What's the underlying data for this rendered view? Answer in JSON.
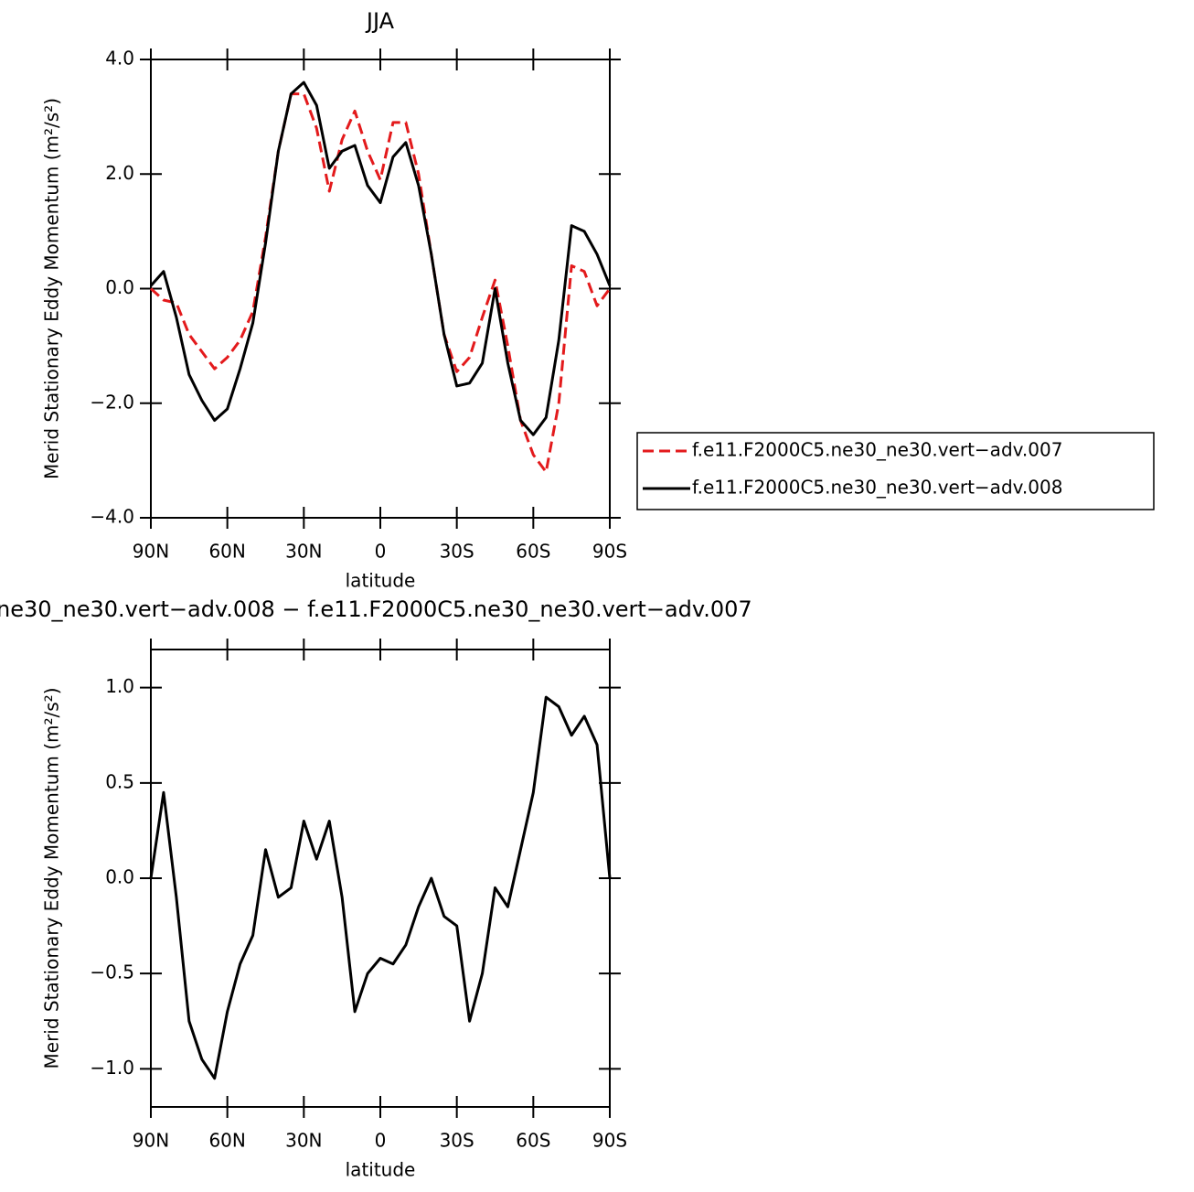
{
  "chart_data": [
    {
      "type": "line",
      "title": "JJA",
      "xlabel": "latitude",
      "ylabel": "Merid Stationary Eddy Momentum (m²/s²)",
      "x": [
        90,
        85,
        80,
        75,
        70,
        65,
        60,
        55,
        50,
        45,
        40,
        35,
        30,
        25,
        20,
        15,
        10,
        5,
        0,
        -5,
        -10,
        -15,
        -20,
        -25,
        -30,
        -35,
        -40,
        -45,
        -50,
        -55,
        -60,
        -65,
        -70,
        -75,
        -80,
        -85,
        -90
      ],
      "xlim": [
        90,
        -90
      ],
      "xticks": [
        {
          "value": 90,
          "label": "90N"
        },
        {
          "value": 60,
          "label": "60N"
        },
        {
          "value": 30,
          "label": "30N"
        },
        0,
        {
          "value": -30,
          "label": "30S"
        },
        {
          "value": -60,
          "label": "60S"
        },
        {
          "value": -90,
          "label": "90S"
        }
      ],
      "ylim": [
        -4,
        4
      ],
      "yticks": [
        {
          "value": -4,
          "label": "−4.0"
        },
        {
          "value": -2,
          "label": "−2.0"
        },
        {
          "value": 0,
          "label": "0.0"
        },
        {
          "value": 2,
          "label": "2.0"
        },
        {
          "value": 4,
          "label": "4.0"
        }
      ],
      "legend": "right",
      "series": [
        {
          "name": "f.e11.F2000C5.ne30_ne30.vert−adv.007",
          "color": "#e31a1c",
          "style": "dashed",
          "values": [
            0.0,
            -0.2,
            -0.25,
            -0.8,
            -1.1,
            -1.4,
            -1.2,
            -0.9,
            -0.4,
            0.9,
            2.4,
            3.4,
            3.4,
            2.8,
            1.7,
            2.6,
            3.1,
            2.4,
            1.9,
            2.9,
            2.9,
            2.0,
            0.6,
            -0.8,
            -1.45,
            -1.2,
            -0.5,
            0.15,
            -1.0,
            -2.3,
            -2.9,
            -3.2,
            -2.0,
            0.4,
            0.3,
            -0.3,
            0.0
          ]
        },
        {
          "name": "f.e11.F2000C5.ne30_ne30.vert−adv.008",
          "color": "#000000",
          "style": "solid",
          "values": [
            0.05,
            0.3,
            -0.5,
            -1.5,
            -1.95,
            -2.3,
            -2.1,
            -1.4,
            -0.6,
            0.8,
            2.4,
            3.4,
            3.6,
            3.2,
            2.1,
            2.4,
            2.5,
            1.8,
            1.5,
            2.3,
            2.55,
            1.8,
            0.6,
            -0.8,
            -1.7,
            -1.65,
            -1.3,
            0.0,
            -1.3,
            -2.3,
            -2.55,
            -2.25,
            -0.9,
            1.1,
            1.0,
            0.6,
            0.05
          ]
        }
      ]
    },
    {
      "type": "line",
      "title": "ne30_ne30.vert−adv.008 − f.e11.F2000C5.ne30_ne30.vert−adv.007",
      "xlabel": "latitude",
      "ylabel": "Merid Stationary Eddy Momentum (m²/s²)",
      "x": [
        90,
        85,
        80,
        75,
        70,
        65,
        60,
        55,
        50,
        45,
        40,
        35,
        30,
        25,
        20,
        15,
        10,
        5,
        0,
        -5,
        -10,
        -15,
        -20,
        -25,
        -30,
        -35,
        -40,
        -45,
        -50,
        -55,
        -60,
        -65,
        -70,
        -75,
        -80,
        -85,
        -90
      ],
      "xlim": [
        90,
        -90
      ],
      "xticks": [
        {
          "value": 90,
          "label": "90N"
        },
        {
          "value": 60,
          "label": "60N"
        },
        {
          "value": 30,
          "label": "30N"
        },
        0,
        {
          "value": -30,
          "label": "30S"
        },
        {
          "value": -60,
          "label": "60S"
        },
        {
          "value": -90,
          "label": "90S"
        }
      ],
      "ylim": [
        -1.2,
        1.2
      ],
      "yticks": [
        {
          "value": -1,
          "label": "−1.0"
        },
        {
          "value": -0.5,
          "label": "−0.5"
        },
        {
          "value": 0,
          "label": "0.0"
        },
        {
          "value": 0.5,
          "label": "0.5"
        },
        {
          "value": 1,
          "label": "1.0"
        }
      ],
      "series": [
        {
          "color": "#000000",
          "style": "solid",
          "values": [
            0.0,
            0.45,
            -0.1,
            -0.75,
            -0.95,
            -1.05,
            -0.7,
            -0.45,
            -0.3,
            0.15,
            -0.1,
            -0.05,
            0.3,
            0.1,
            0.3,
            -0.1,
            -0.7,
            -0.5,
            -0.42,
            -0.45,
            -0.35,
            -0.15,
            0.0,
            -0.2,
            -0.25,
            -0.75,
            -0.5,
            -0.05,
            -0.15,
            0.15,
            0.45,
            0.95,
            0.9,
            0.75,
            0.85,
            0.7,
            0.0
          ]
        }
      ]
    }
  ]
}
